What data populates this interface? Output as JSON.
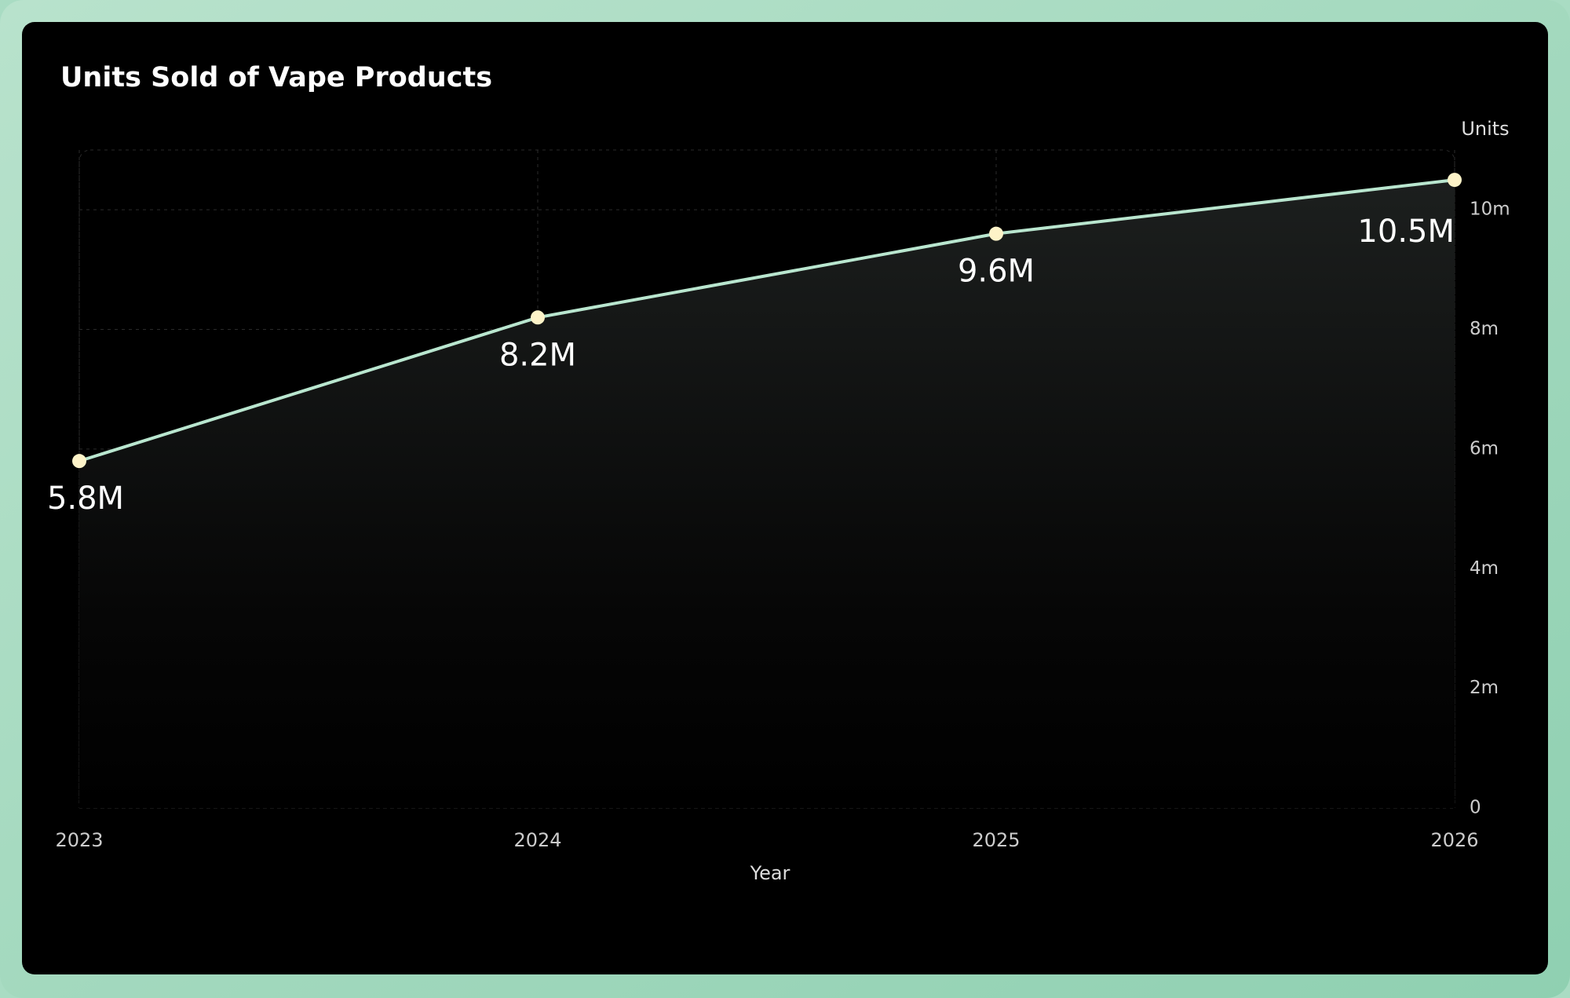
{
  "chart_data": {
    "type": "line",
    "title": "Units Sold of Vape Products",
    "x_label": "Year",
    "y_label": "Units",
    "categories": [
      "2023",
      "2024",
      "2025",
      "2026"
    ],
    "values": [
      5.8,
      8.2,
      9.6,
      10.5
    ],
    "value_labels": [
      "5.8M",
      "8.2M",
      "9.6M",
      "10.5M"
    ],
    "color": "#b9e6cf",
    "marker_color": "#fdf3c8",
    "ylim": [
      0,
      11
    ],
    "yticks": [
      0,
      {
        "value": 2,
        "label": "2m"
      },
      {
        "value": 4,
        "label": "4m"
      },
      {
        "value": 6,
        "label": "6m"
      },
      {
        "value": 8,
        "label": "8m"
      },
      {
        "value": 10,
        "label": "10m"
      }
    ],
    "grid": true
  }
}
